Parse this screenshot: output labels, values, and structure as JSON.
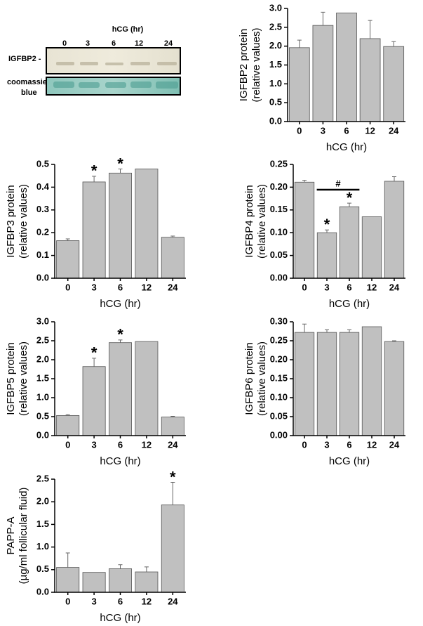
{
  "blot": {
    "title": "hCG (hr)",
    "lanes": [
      "0",
      "3",
      "6",
      "12",
      "24"
    ],
    "rows": [
      "IGFBP2 -",
      "coomassie",
      "blue"
    ]
  },
  "chart_data": [
    {
      "type": "bar",
      "ylabel": [
        "IGFBP2 protein",
        "(relative values)"
      ],
      "xlabel": "hCG (hr)",
      "categories": [
        "0",
        "3",
        "6",
        "12",
        "24"
      ],
      "values": [
        1.96,
        2.55,
        2.88,
        2.2,
        1.99
      ],
      "errors": [
        0.2,
        0.35,
        null,
        0.48,
        0.13
      ],
      "significance": [
        null,
        null,
        null,
        null,
        null
      ],
      "color": "#c0c0c0",
      "ylim": [
        0,
        3
      ],
      "yticks": [
        {
          "value": 0,
          "label": "0.0"
        },
        0.5,
        {
          "value": 1,
          "label": "1.0"
        },
        1.5,
        {
          "value": 2,
          "label": "2.0"
        },
        2.5,
        {
          "value": 3,
          "label": "3.0"
        }
      ]
    },
    {
      "type": "bar",
      "ylabel": [
        "IGFBP3 protein",
        "(relative values)"
      ],
      "xlabel": "hCG (hr)",
      "categories": [
        "0",
        "3",
        "6",
        "12",
        "24"
      ],
      "values": [
        0.165,
        0.423,
        0.462,
        0.48,
        0.18
      ],
      "errors": [
        0.008,
        0.025,
        0.018,
        null,
        0.005
      ],
      "significance": [
        null,
        "*",
        "*",
        null,
        null
      ],
      "color": "#c0c0c0",
      "ylim": [
        0,
        0.5
      ],
      "yticks": [
        {
          "value": 0,
          "label": "0.0"
        },
        0.1,
        0.2,
        0.3,
        0.4,
        0.5
      ]
    },
    {
      "type": "bar",
      "ylabel": [
        "IGFBP4 protein",
        "(relative values)"
      ],
      "xlabel": "hCG (hr)",
      "categories": [
        "0",
        "3",
        "6",
        "12",
        "24"
      ],
      "values": [
        0.211,
        0.1,
        0.157,
        0.135,
        0.213
      ],
      "errors": [
        0.004,
        0.006,
        0.008,
        null,
        0.01
      ],
      "significance": [
        null,
        "*",
        "*",
        null,
        null
      ],
      "bracket": {
        "label": "#",
        "categories": [
          "3",
          "6"
        ]
      },
      "color": "#c0c0c0",
      "ylim": [
        0,
        0.25
      ],
      "yticks": [
        {
          "value": 0,
          "label": "0.00"
        },
        0.05,
        {
          "value": 0.1,
          "label": "0.10"
        },
        0.15,
        {
          "value": 0.2,
          "label": "0.20"
        },
        0.25
      ]
    },
    {
      "type": "bar",
      "ylabel": [
        "IGFBP5 protein",
        "(relative values)"
      ],
      "xlabel": "hCG (hr)",
      "categories": [
        "0",
        "3",
        "6",
        "12",
        "24"
      ],
      "values": [
        0.53,
        1.82,
        2.45,
        2.48,
        0.49
      ],
      "errors": [
        0.02,
        0.22,
        0.07,
        null,
        0.02
      ],
      "significance": [
        null,
        "*",
        "*",
        null,
        null
      ],
      "color": "#c0c0c0",
      "ylim": [
        0,
        3
      ],
      "yticks": [
        {
          "value": 0,
          "label": "0.0"
        },
        0.5,
        {
          "value": 1,
          "label": "1.0"
        },
        1.5,
        {
          "value": 2,
          "label": "2.0"
        },
        2.5,
        {
          "value": 3,
          "label": "3.0"
        }
      ]
    },
    {
      "type": "bar",
      "ylabel": [
        "IGFBP6 protein",
        "(relative values)"
      ],
      "xlabel": "hCG (hr)",
      "categories": [
        "0",
        "3",
        "6",
        "12",
        "24"
      ],
      "values": [
        0.272,
        0.272,
        0.272,
        0.287,
        0.248
      ],
      "errors": [
        0.022,
        0.007,
        0.007,
        null,
        0.002
      ],
      "significance": [
        null,
        null,
        null,
        null,
        null
      ],
      "color": "#c0c0c0",
      "ylim": [
        0,
        0.3
      ],
      "yticks": [
        {
          "value": 0,
          "label": "0.00"
        },
        0.05,
        {
          "value": 0.1,
          "label": "0.10"
        },
        0.15,
        {
          "value": 0.2,
          "label": "0.20"
        },
        0.25,
        {
          "value": 0.3,
          "label": "0.30"
        }
      ]
    },
    {
      "type": "bar",
      "ylabel": [
        "PAPP-A",
        "(µg/ml follicular fluid)"
      ],
      "xlabel": "hCG (hr)",
      "categories": [
        "0",
        "3",
        "6",
        "12",
        "24"
      ],
      "values": [
        0.55,
        0.44,
        0.52,
        0.45,
        1.93
      ],
      "errors": [
        0.32,
        null,
        0.09,
        0.11,
        0.5
      ],
      "significance": [
        null,
        null,
        null,
        null,
        "*"
      ],
      "color": "#c0c0c0",
      "ylim": [
        0,
        2.5
      ],
      "yticks": [
        {
          "value": 0,
          "label": "0.0"
        },
        0.5,
        {
          "value": 1,
          "label": "1.0"
        },
        1.5,
        {
          "value": 2,
          "label": "2.0"
        },
        2.5
      ]
    }
  ]
}
